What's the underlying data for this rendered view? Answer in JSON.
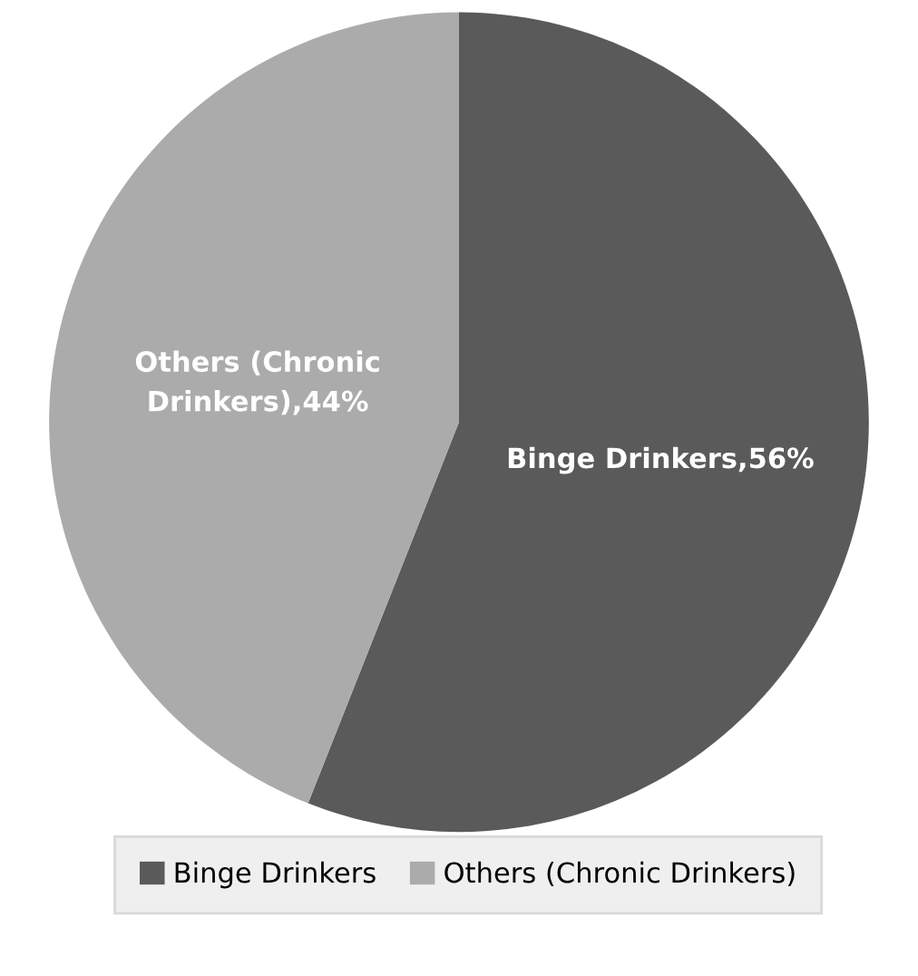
{
  "chart_data": {
    "type": "pie",
    "categories": [
      "Binge Drinkers",
      "Others (Chronic Drinkers)"
    ],
    "values": [
      56,
      44
    ],
    "colors": [
      "#5a5a5a",
      "#ababab"
    ],
    "value_labels": [
      "Binge Drinkers,56%",
      "Others (Chronic\nDrinkers),44%"
    ],
    "legend": "bottom"
  }
}
